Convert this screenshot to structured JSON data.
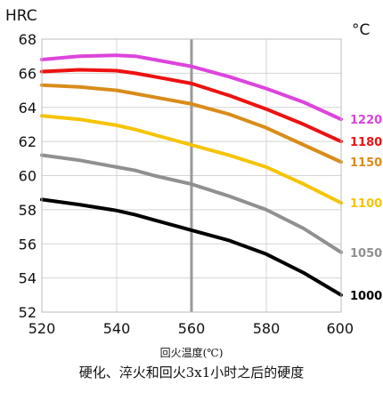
{
  "chart_data": {
    "type": "line",
    "ylabel": "HRC",
    "unit_label": "°C",
    "xlabel": "回火温度(℃)",
    "caption": "硬化、淬火和回火3x1小时之后的硬度",
    "xlim": [
      520,
      600
    ],
    "ylim": [
      52,
      68
    ],
    "xticks": [
      520,
      540,
      560,
      580,
      600
    ],
    "yticks": [
      52,
      54,
      56,
      58,
      60,
      62,
      64,
      66,
      68
    ],
    "grid": true,
    "reference_x": 560,
    "reference_color": "#999999",
    "series": [
      {
        "name": "1220",
        "color": "#dd44dd",
        "x": [
          520,
          530,
          540,
          545,
          550,
          560,
          570,
          580,
          590,
          600
        ],
        "y": [
          66.8,
          67.0,
          67.05,
          67.0,
          66.8,
          66.4,
          65.8,
          65.1,
          64.3,
          63.3
        ]
      },
      {
        "name": "1180",
        "color": "#ee1111",
        "x": [
          520,
          530,
          540,
          545,
          550,
          560,
          570,
          580,
          590,
          600
        ],
        "y": [
          66.1,
          66.2,
          66.15,
          66.0,
          65.8,
          65.4,
          64.7,
          63.9,
          63.0,
          62.0
        ]
      },
      {
        "name": "1150",
        "color": "#d98c1a",
        "x": [
          520,
          530,
          540,
          545,
          550,
          560,
          570,
          580,
          590,
          600
        ],
        "y": [
          65.3,
          65.2,
          65.0,
          64.8,
          64.6,
          64.2,
          63.6,
          62.8,
          61.8,
          60.8
        ]
      },
      {
        "name": "1100",
        "color": "#f5c400",
        "x": [
          520,
          530,
          540,
          545,
          550,
          560,
          570,
          580,
          590,
          600
        ],
        "y": [
          63.5,
          63.3,
          62.95,
          62.7,
          62.4,
          61.8,
          61.2,
          60.5,
          59.5,
          58.4
        ]
      },
      {
        "name": "1050",
        "color": "#909090",
        "x": [
          520,
          530,
          540,
          545,
          550,
          560,
          570,
          580,
          590,
          600
        ],
        "y": [
          61.2,
          60.9,
          60.5,
          60.3,
          60.0,
          59.5,
          58.8,
          58.0,
          56.9,
          55.5
        ]
      },
      {
        "name": "1000",
        "color": "#000000",
        "x": [
          520,
          530,
          540,
          545,
          550,
          560,
          570,
          580,
          590,
          600
        ],
        "y": [
          58.6,
          58.3,
          57.95,
          57.7,
          57.4,
          56.8,
          56.2,
          55.4,
          54.3,
          53.0
        ]
      }
    ]
  }
}
